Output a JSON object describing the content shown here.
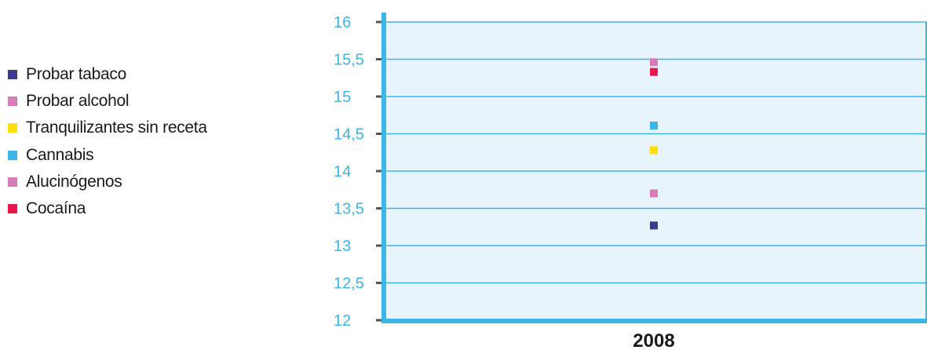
{
  "chart_data": {
    "type": "scatter",
    "title": "",
    "xlabel": "",
    "ylabel": "",
    "categories": [
      "2008"
    ],
    "ylim": [
      12,
      16
    ],
    "y_ticks": [
      "12",
      "12,5",
      "13",
      "13,5",
      "14",
      "14,5",
      "15",
      "15,5",
      "16"
    ],
    "y_tick_values": [
      12,
      12.5,
      13,
      13.5,
      14,
      14.5,
      15,
      15.5,
      16
    ],
    "grid": true,
    "legend_position": "left",
    "series": [
      {
        "name": "Probar tabaco",
        "color": "#3f3a8f",
        "values": [
          13.27
        ]
      },
      {
        "name": "Probar alcohol",
        "color": "#d87cb8",
        "values": [
          15.46
        ]
      },
      {
        "name": "Tranquilizantes sin receta",
        "color": "#ffe000",
        "values": [
          14.28
        ]
      },
      {
        "name": "Cannabis",
        "color": "#3cb6e6",
        "values": [
          14.61
        ]
      },
      {
        "name": "Alucinógenos",
        "color": "#d87cb8",
        "values": [
          13.7
        ]
      },
      {
        "name": "Cocaína",
        "color": "#e8174f",
        "values": [
          15.33
        ]
      }
    ],
    "colors": {
      "plot_background": "#e7f4fb",
      "grid_line": "#3cb6e6",
      "axis": "#3cb6e6",
      "tick_label": "#3cb6e6",
      "x_label": "#1a1a1a"
    }
  }
}
